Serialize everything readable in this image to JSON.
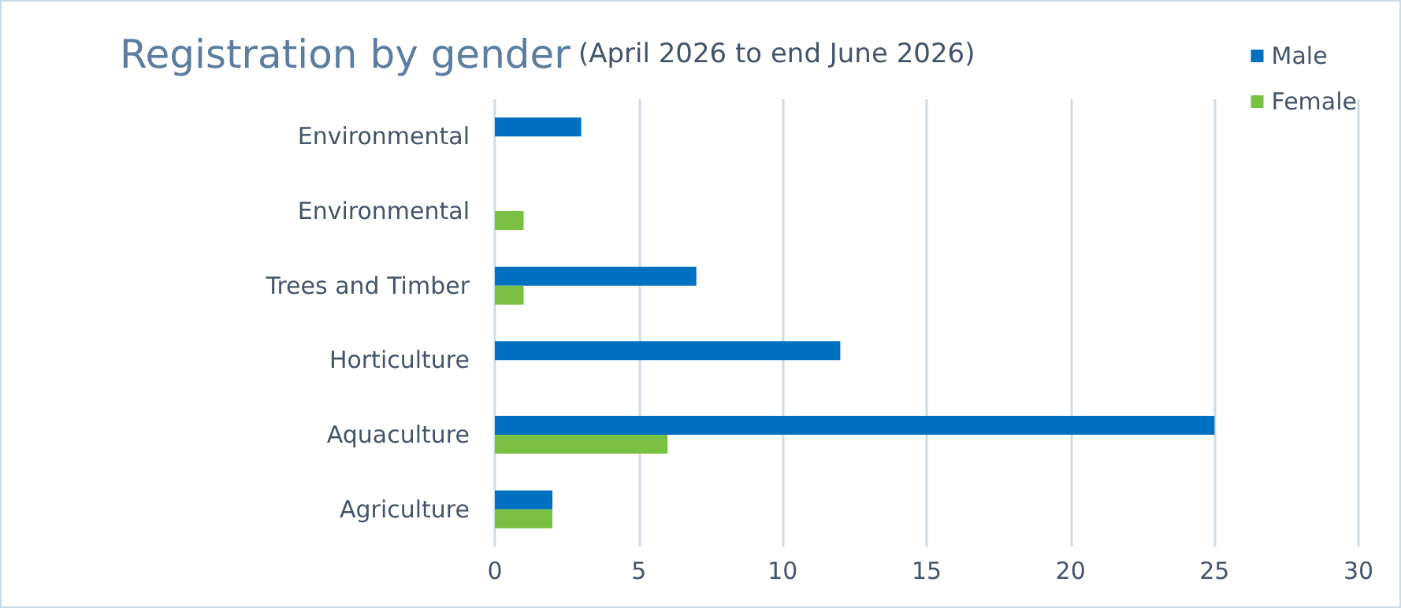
{
  "chart_data": {
    "type": "bar",
    "orientation": "horizontal",
    "title": "Registration by gender",
    "subtitle": "(April 2026 to end June 2026)",
    "categories": [
      "Environmental",
      "Environmental",
      "Trees and Timber",
      "Horticulture",
      "Aquaculture",
      "Agriculture"
    ],
    "series": [
      {
        "name": "Male",
        "color": "#0070c0",
        "values": [
          3,
          null,
          7,
          12,
          25,
          2
        ]
      },
      {
        "name": "Female",
        "color": "#7ac143",
        "values": [
          null,
          1,
          1,
          null,
          6,
          2
        ]
      }
    ],
    "xlim": [
      0,
      30
    ],
    "xticks": [
      0,
      5,
      10,
      15,
      20,
      25,
      30
    ],
    "grid": "x",
    "legend": "top right"
  }
}
